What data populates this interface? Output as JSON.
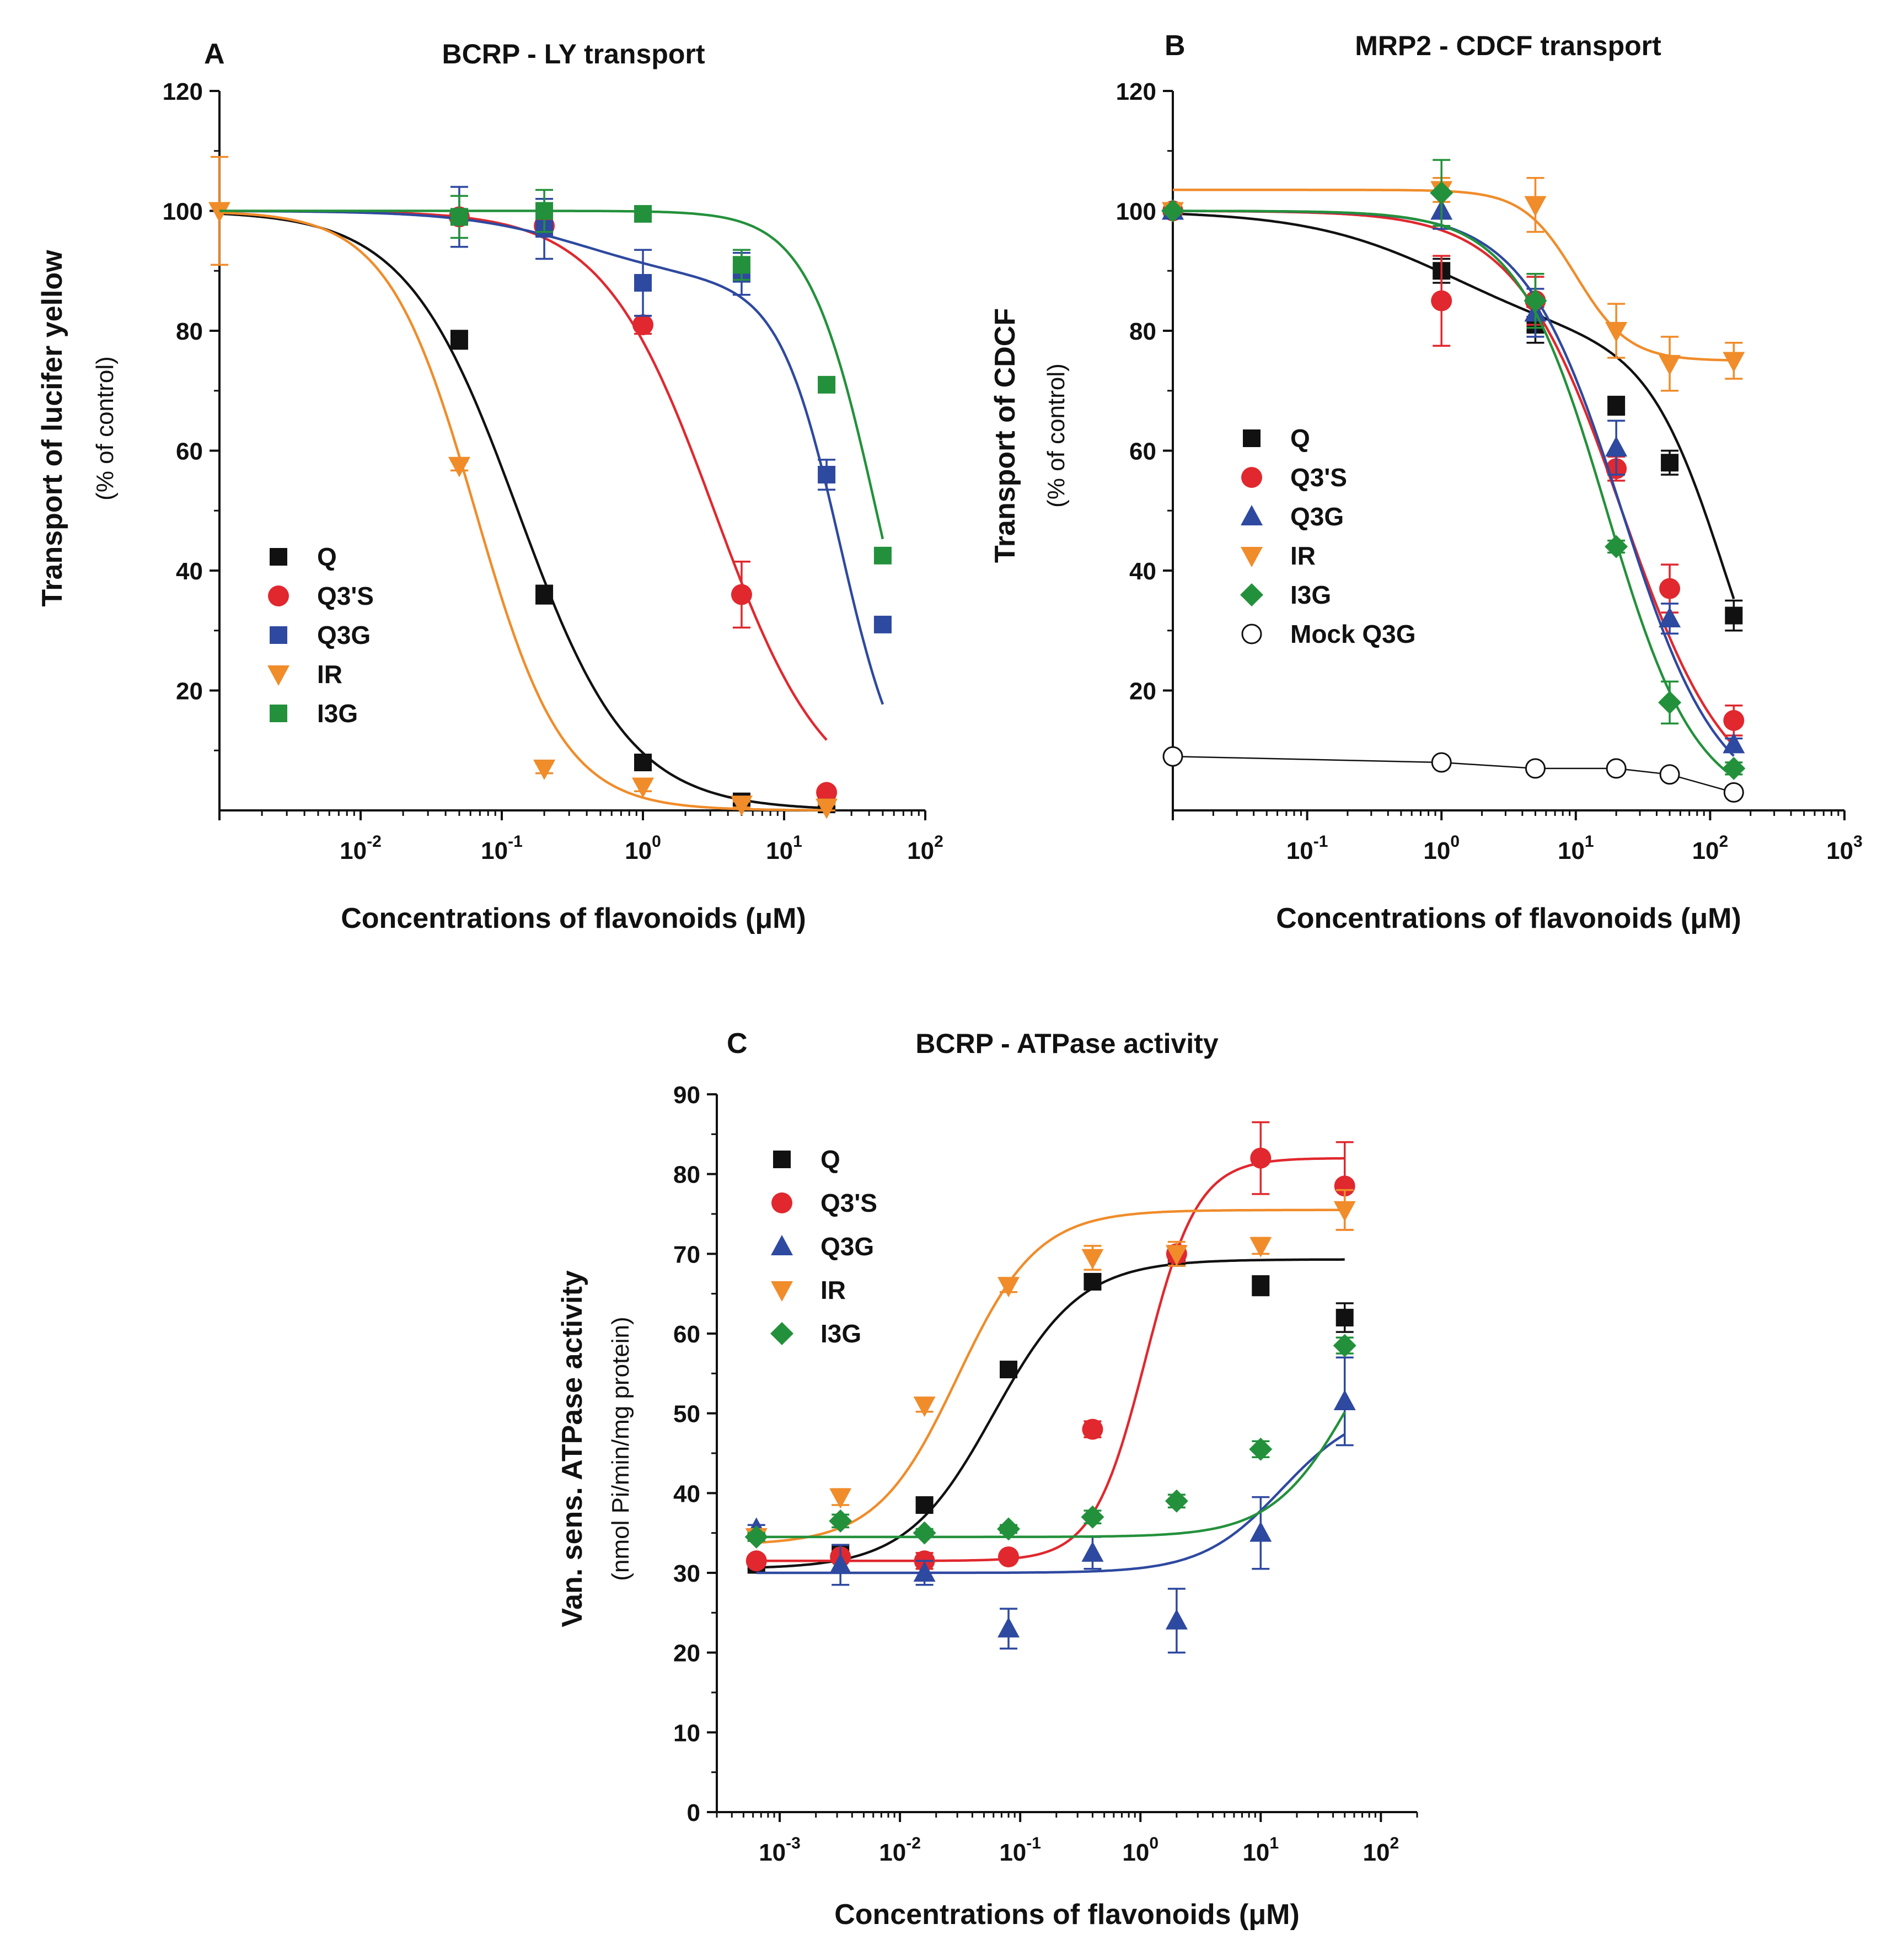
{
  "chart_data": [
    {
      "panel": "A",
      "type": "scatter",
      "title": "BCRP - LY transport",
      "ylabel": "Transport of lucifer yellow",
      "ylabel_sub": "(% of control)",
      "xlabel": "Concentrations of flavonoids (μM)",
      "xscale": "log",
      "xlim": [
        0.001,
        100
      ],
      "ylim": [
        0,
        120
      ],
      "yticks": [
        20,
        40,
        60,
        80,
        100,
        120
      ],
      "xticks": [
        0.01,
        0.1,
        1,
        10,
        100
      ],
      "xtick_labels": [
        {
          "base": "10",
          "exp": "-2"
        },
        {
          "base": "10",
          "exp": "-1"
        },
        {
          "base": "10",
          "exp": "0"
        },
        {
          "base": "10",
          "exp": "1"
        },
        {
          "base": "10",
          "exp": "2"
        }
      ],
      "legend_position": "lower-left",
      "series": [
        {
          "name": "Q",
          "color": "#111111",
          "marker": "square",
          "x": [
            0.05,
            0.2,
            1,
            5,
            20
          ],
          "y": [
            78.5,
            36,
            8,
            1.5,
            1
          ],
          "err": [
            1.5,
            1.5,
            1,
            0.5,
            0.5
          ],
          "fit": {
            "kind": "hill",
            "top": 100,
            "bottom": 0,
            "ec50": 0.13,
            "n": 1.1,
            "xmin": 0.001,
            "xmax": 20
          }
        },
        {
          "name": "Q3'S",
          "color": "#e0282e",
          "marker": "circle",
          "x": [
            0.05,
            0.2,
            1,
            5,
            20
          ],
          "y": [
            99,
            97.5,
            81,
            36,
            3
          ],
          "err": [
            1,
            1,
            1.5,
            5.5,
            0.8
          ],
          "fit": {
            "kind": "hill",
            "top": 100,
            "bottom": 0,
            "ec50": 3.2,
            "n": 1.1,
            "xmin": 0.001,
            "xmax": 20
          }
        },
        {
          "name": "Q3G",
          "color": "#2e49a0",
          "marker": "square",
          "x": [
            0.05,
            0.2,
            1,
            5,
            20,
            50
          ],
          "y": [
            99,
            97,
            88,
            89.5,
            56,
            31
          ],
          "err": [
            5,
            5,
            5.5,
            3.5,
            2.5,
            1
          ],
          "fit": {
            "kind": "biphasic",
            "top": 100,
            "f1": 0.12,
            "ec1": 0.4,
            "n1": 1,
            "ec2": 25,
            "n2": 2,
            "xmin": 0.001,
            "xmax": 50
          }
        },
        {
          "name": "IR",
          "color": "#f08c2a",
          "marker": "triangle-down",
          "x": [
            0.001,
            0.05,
            0.2,
            1,
            5,
            20
          ],
          "y": [
            100,
            57.5,
            7,
            4,
            1,
            0.5
          ],
          "err": [
            9,
            0.8,
            0.8,
            0.8,
            0.5,
            0.5
          ],
          "fit": {
            "kind": "hill",
            "top": 100,
            "bottom": 0,
            "ec50": 0.065,
            "n": 1.4,
            "xmin": 0.001,
            "xmax": 20
          }
        },
        {
          "name": "I3G",
          "color": "#23913b",
          "marker": "square",
          "x": [
            0.05,
            0.2,
            1,
            5,
            20,
            50
          ],
          "y": [
            99,
            100,
            99.5,
            91,
            71,
            42.5
          ],
          "err": [
            3.5,
            3.5,
            1,
            2.5,
            1,
            0.8
          ],
          "fit": {
            "kind": "hill",
            "top": 100,
            "bottom": 0,
            "ec50": 45,
            "n": 1.8,
            "xmin": 0.001,
            "xmax": 50
          }
        }
      ]
    },
    {
      "panel": "B",
      "type": "scatter",
      "title": "MRP2 - CDCF transport",
      "ylabel": "Transport of CDCF",
      "ylabel_sub": "(% of control)",
      "xlabel": "Concentrations of flavonoids (μM)",
      "xscale": "log",
      "xlim": [
        0.01,
        1000
      ],
      "ylim": [
        0,
        120
      ],
      "yticks": [
        20,
        40,
        60,
        80,
        100,
        120
      ],
      "xticks": [
        0.1,
        1,
        10,
        100,
        1000
      ],
      "xtick_labels": [
        {
          "base": "10",
          "exp": "-1"
        },
        {
          "base": "10",
          "exp": "0"
        },
        {
          "base": "10",
          "exp": "1"
        },
        {
          "base": "10",
          "exp": "2"
        },
        {
          "base": "10",
          "exp": "3"
        }
      ],
      "legend_position": "middle-left",
      "series": [
        {
          "name": "Q",
          "color": "#111111",
          "marker": "square",
          "x": [
            0.01,
            1,
            5,
            20,
            50,
            150
          ],
          "y": [
            100,
            90,
            81,
            67.5,
            58,
            32.5
          ],
          "err": [
            0,
            2,
            3,
            1.5,
            2,
            2.5
          ],
          "fit": {
            "kind": "biphasic",
            "top": 100,
            "f1": 0.22,
            "ec1": 1.2,
            "n1": 0.8,
            "ec2": 130,
            "n2": 1.5,
            "xmin": 0.01,
            "xmax": 150
          }
        },
        {
          "name": "Q3'S",
          "color": "#e0282e",
          "marker": "circle",
          "x": [
            0.01,
            1,
            5,
            20,
            50,
            150
          ],
          "y": [
            100,
            85,
            85,
            57,
            37,
            15
          ],
          "err": [
            0,
            7.5,
            4,
            2,
            4,
            2.5
          ],
          "fit": {
            "kind": "hill",
            "top": 100,
            "bottom": 0,
            "ec50": 22,
            "n": 1.1,
            "xmin": 0.01,
            "xmax": 150
          }
        },
        {
          "name": "Q3G",
          "color": "#2e49a0",
          "marker": "triangle",
          "x": [
            0.01,
            1,
            5,
            20,
            50,
            150
          ],
          "y": [
            100,
            100,
            83,
            60.5,
            32,
            11
          ],
          "err": [
            0,
            3,
            4,
            4.5,
            2.5,
            1
          ],
          "fit": {
            "kind": "hill",
            "top": 100,
            "bottom": 0,
            "ec50": 22,
            "n": 1.2,
            "xmin": 0.01,
            "xmax": 150
          }
        },
        {
          "name": "IR",
          "color": "#f08c2a",
          "marker": "triangle-down",
          "x": [
            0.01,
            1,
            5,
            20,
            50,
            150
          ],
          "y": [
            100,
            103.5,
            101,
            80,
            74.5,
            75
          ],
          "err": [
            0,
            2,
            4.5,
            4.5,
            4.5,
            3
          ],
          "fit": {
            "kind": "rise-fall",
            "top": 103.5,
            "bottom": 75,
            "ec50": 10,
            "n": 2.2,
            "xmin": 0.01,
            "xmax": 150
          }
        },
        {
          "name": "I3G",
          "color": "#23913b",
          "marker": "diamond",
          "x": [
            0.01,
            1,
            5,
            20,
            50,
            150
          ],
          "y": [
            100,
            103,
            85,
            44,
            18,
            7
          ],
          "err": [
            0,
            5.5,
            4.5,
            1,
            3.5,
            1
          ],
          "fit": {
            "kind": "hill",
            "top": 100,
            "bottom": 0,
            "ec50": 17,
            "n": 1.3,
            "xmin": 0.01,
            "xmax": 150
          }
        },
        {
          "name": "Mock Q3G",
          "color": "#111111",
          "marker": "open-circle",
          "x": [
            0.01,
            1,
            5,
            20,
            50,
            150
          ],
          "y": [
            9,
            8,
            7,
            7,
            6,
            3
          ],
          "err": [
            0,
            0,
            0,
            0,
            0,
            0
          ],
          "fit": {
            "kind": "connect"
          }
        }
      ]
    },
    {
      "panel": "C",
      "type": "scatter",
      "title": "BCRP - ATPase activity",
      "ylabel": "Van. sens. ATPase activity",
      "ylabel_sub": "(nmol Pi/min/mg protein)",
      "xlabel": "Concentrations of flavonoids (μM)",
      "xscale": "log",
      "xlim": [
        0.0003,
        200
      ],
      "ylim": [
        0,
        90
      ],
      "yticks": [
        0,
        10,
        20,
        30,
        40,
        50,
        60,
        70,
        80,
        90
      ],
      "xticks": [
        0.001,
        0.01,
        0.1,
        1,
        10,
        100
      ],
      "xtick_labels": [
        {
          "base": "10",
          "exp": "-3"
        },
        {
          "base": "10",
          "exp": "-2"
        },
        {
          "base": "10",
          "exp": "-1"
        },
        {
          "base": "10",
          "exp": "0"
        },
        {
          "base": "10",
          "exp": "1"
        },
        {
          "base": "10",
          "exp": "2"
        }
      ],
      "legend_position": "top-left",
      "series": [
        {
          "name": "Q",
          "color": "#111111",
          "marker": "square",
          "x": [
            0.00064,
            0.0032,
            0.016,
            0.08,
            0.4,
            2,
            10,
            50
          ],
          "y": [
            31,
            32.5,
            38.5,
            55.5,
            66.5,
            69.5,
            66,
            62
          ],
          "err": [
            0.5,
            1,
            0.8,
            0.8,
            0.8,
            1,
            1.2,
            1.8
          ],
          "fit": {
            "kind": "hill-up",
            "bottom": 30.5,
            "top": 69.3,
            "ec50": 0.06,
            "n": 1.2,
            "xmin": 0.00064,
            "xmax": 50
          }
        },
        {
          "name": "Q3'S",
          "color": "#e0282e",
          "marker": "circle",
          "x": [
            0.00064,
            0.0032,
            0.016,
            0.08,
            0.4,
            2,
            10,
            50
          ],
          "y": [
            31.5,
            32,
            31.5,
            32,
            48,
            70,
            82,
            78.5
          ],
          "err": [
            0.5,
            0.5,
            1,
            0.5,
            1,
            1,
            4.5,
            5.5
          ],
          "fit": {
            "kind": "hill-up",
            "bottom": 31.5,
            "top": 82,
            "ec50": 1.1,
            "n": 2,
            "xmin": 0.00064,
            "xmax": 50
          }
        },
        {
          "name": "Q3G",
          "color": "#2e49a0",
          "marker": "triangle",
          "x": [
            0.00064,
            0.0032,
            0.016,
            0.08,
            0.4,
            2,
            10,
            50
          ],
          "y": [
            35.5,
            31,
            30,
            23,
            32.5,
            24,
            35,
            51.5
          ],
          "err": [
            0.5,
            2.5,
            1.5,
            2.5,
            2,
            4,
            4.5,
            5.5
          ],
          "fit": {
            "kind": "hill-up",
            "bottom": 30,
            "top": 51,
            "ec50": 15,
            "n": 1.3,
            "xmin": 0.00064,
            "xmax": 50
          }
        },
        {
          "name": "IR",
          "color": "#f08c2a",
          "marker": "triangle-down",
          "x": [
            0.00064,
            0.0032,
            0.016,
            0.08,
            0.4,
            2,
            10,
            50
          ],
          "y": [
            34.5,
            39.5,
            51,
            66,
            69.5,
            70,
            71,
            75.5
          ],
          "err": [
            0.5,
            1,
            0.8,
            0.8,
            1.5,
            1.5,
            1,
            2.5
          ],
          "fit": {
            "kind": "hill-up",
            "bottom": 33.5,
            "top": 75.5,
            "ec50": 0.03,
            "n": 1.3,
            "xmin": 0.00064,
            "xmax": 50
          }
        },
        {
          "name": "I3G",
          "color": "#23913b",
          "marker": "diamond",
          "x": [
            0.00064,
            0.0032,
            0.016,
            0.08,
            0.4,
            2,
            10,
            50
          ],
          "y": [
            34.5,
            36.5,
            35,
            35.5,
            37,
            39,
            45.5,
            58.5
          ],
          "err": [
            0.5,
            0.8,
            0.5,
            0.5,
            0.8,
            0.8,
            1,
            1
          ],
          "fit": {
            "kind": "hill-up",
            "bottom": 34.5,
            "top": 70,
            "ec50": 60,
            "n": 1.3,
            "xmin": 0.00064,
            "xmax": 50
          }
        }
      ]
    }
  ]
}
